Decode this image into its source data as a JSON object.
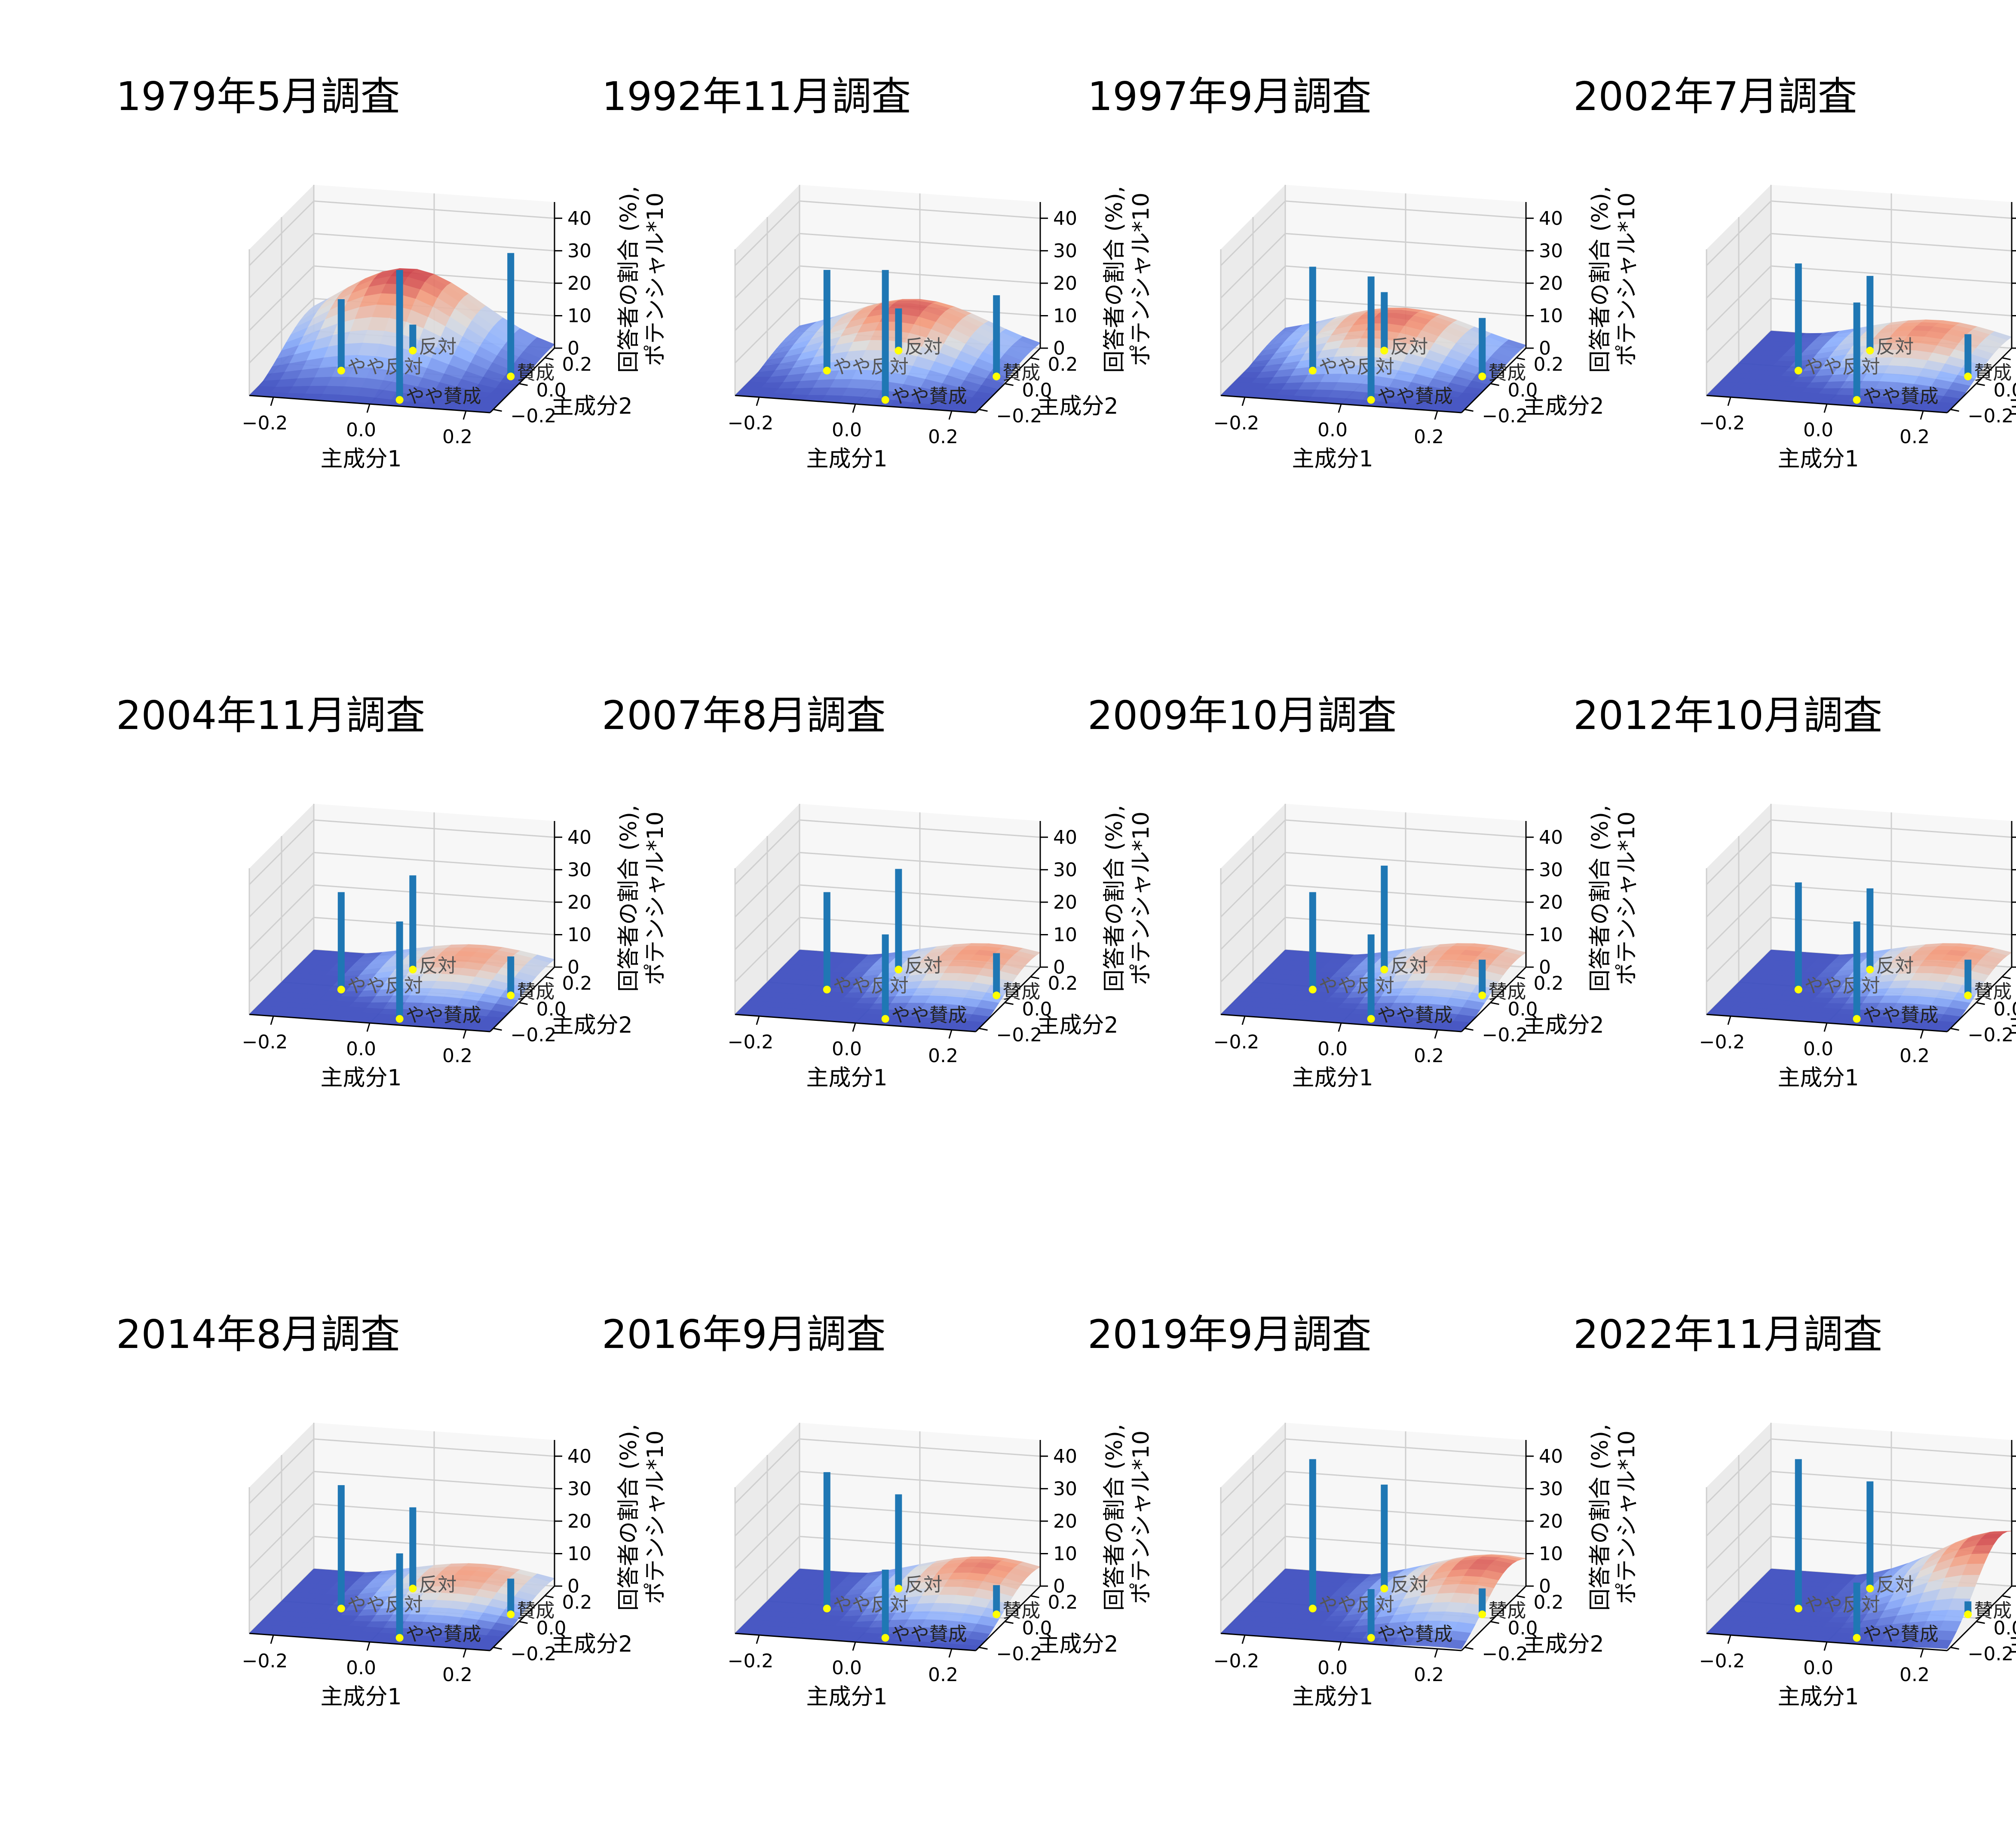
{
  "figure": {
    "z_tick_labels": [
      "0",
      "10",
      "20",
      "30",
      "40"
    ],
    "x_tick_labels": [
      "−0.2",
      "0.0",
      "0.2"
    ],
    "y_tick_labels": [
      "−0.2",
      "0.0",
      "0.2"
    ],
    "xlabel": "主成分1",
    "ylabel": "主成分2",
    "zlabel_line1": "回答者の割合 (%),",
    "zlabel_line2": "ポテンシャル*10",
    "category_labels": [
      "反対",
      "やや反対",
      "賛成",
      "やや賛成"
    ],
    "colors": {
      "bar": "#1f77b4",
      "marker": "#ffff00",
      "surface_low": "#3b4cc0",
      "surface_mid": "#dddddd",
      "surface_high": "#b40426",
      "pane": "#f2f2f2",
      "grid": "#cfcfcf"
    }
  },
  "chart_data": [
    {
      "type": "bar3d+surface",
      "title": "1979年5月調査",
      "categories": [
        "反対",
        "やや反対",
        "賛成",
        "やや賛成"
      ],
      "values": [
        8,
        22,
        38,
        40
      ],
      "surface_peak": {
        "x": -0.05,
        "y": 0.25,
        "z": 24
      },
      "zlim": [
        0,
        45
      ]
    },
    {
      "type": "bar3d+surface",
      "title": "1992年11月調査",
      "categories": [
        "反対",
        "やや反対",
        "賛成",
        "やや賛成"
      ],
      "values": [
        13,
        31,
        25,
        40
      ],
      "surface_peak": {
        "x": 0.0,
        "y": 0.2,
        "z": 16
      },
      "zlim": [
        0,
        45
      ]
    },
    {
      "type": "bar3d+surface",
      "title": "1997年9月調査",
      "categories": [
        "反対",
        "やや反対",
        "賛成",
        "やや賛成"
      ],
      "values": [
        18,
        32,
        18,
        38
      ],
      "surface_peak": {
        "x": 0.0,
        "y": 0.2,
        "z": 13
      },
      "zlim": [
        0,
        45
      ]
    },
    {
      "type": "bar3d+surface",
      "title": "2002年7月調査",
      "categories": [
        "反対",
        "やや反対",
        "賛成",
        "やや賛成"
      ],
      "values": [
        23,
        33,
        13,
        30
      ],
      "surface_peak": {
        "x": 0.1,
        "y": 0.2,
        "z": 10
      },
      "zlim": [
        0,
        45
      ]
    },
    {
      "type": "bar3d+surface",
      "title": "2004年11月調査",
      "categories": [
        "反対",
        "やや反対",
        "賛成",
        "やや賛成"
      ],
      "values": [
        29,
        30,
        12,
        30
      ],
      "surface_peak": {
        "x": 0.1,
        "y": 0.2,
        "z": 8
      },
      "zlim": [
        0,
        45
      ]
    },
    {
      "type": "bar3d+surface",
      "title": "2007年8月調査",
      "categories": [
        "反対",
        "やや反対",
        "賛成",
        "やや賛成"
      ],
      "values": [
        31,
        30,
        13,
        26
      ],
      "surface_peak": {
        "x": 0.15,
        "y": 0.2,
        "z": 9
      },
      "zlim": [
        0,
        45
      ]
    },
    {
      "type": "bar3d+surface",
      "title": "2009年10月調査",
      "categories": [
        "反対",
        "やや反対",
        "賛成",
        "やや賛成"
      ],
      "values": [
        32,
        30,
        11,
        26
      ],
      "surface_peak": {
        "x": 0.15,
        "y": 0.2,
        "z": 9
      },
      "zlim": [
        0,
        45
      ]
    },
    {
      "type": "bar3d+surface",
      "title": "2012年10月調査",
      "categories": [
        "反対",
        "やや反対",
        "賛成",
        "やや賛成"
      ],
      "values": [
        25,
        33,
        11,
        30
      ],
      "surface_peak": {
        "x": 0.15,
        "y": 0.2,
        "z": 9
      },
      "zlim": [
        0,
        45
      ]
    },
    {
      "type": "bar3d+surface",
      "title": "2014年8月調査",
      "categories": [
        "反対",
        "やや反対",
        "賛成",
        "やや賛成"
      ],
      "values": [
        25,
        38,
        11,
        26
      ],
      "surface_peak": {
        "x": 0.1,
        "y": 0.2,
        "z": 8
      },
      "zlim": [
        0,
        45
      ]
    },
    {
      "type": "bar3d+surface",
      "title": "2016年9月調査",
      "categories": [
        "反対",
        "やや反対",
        "賛成",
        "やや賛成"
      ],
      "values": [
        29,
        42,
        9,
        21
      ],
      "surface_peak": {
        "x": 0.15,
        "y": 0.2,
        "z": 11
      },
      "zlim": [
        0,
        45
      ]
    },
    {
      "type": "bar3d+surface",
      "title": "2019年9月調査",
      "categories": [
        "反対",
        "やや反対",
        "賛成",
        "やや賛成"
      ],
      "values": [
        32,
        46,
        8,
        15
      ],
      "surface_peak": {
        "x": 0.2,
        "y": 0.15,
        "z": 14
      },
      "zlim": [
        0,
        45
      ]
    },
    {
      "type": "bar3d+surface",
      "title": "2022年11月調査",
      "categories": [
        "反対",
        "やや反対",
        "賛成",
        "やや賛成"
      ],
      "values": [
        33,
        46,
        4,
        17
      ],
      "surface_peak": {
        "x": 0.25,
        "y": 0.2,
        "z": 21
      },
      "zlim": [
        0,
        45
      ]
    }
  ]
}
